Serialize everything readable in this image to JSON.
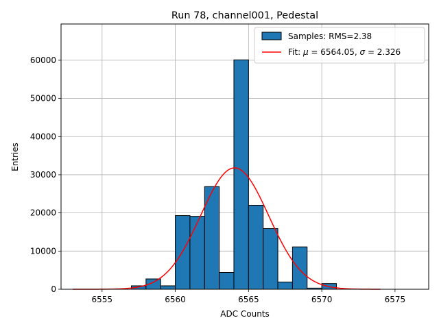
{
  "chart_data": {
    "type": "bar",
    "title": "Run 78, channel001, Pedestal",
    "xlabel": "ADC Counts",
    "ylabel": "Entries",
    "xlim": [
      6552.2,
      6577.3
    ],
    "ylim": [
      0,
      69500
    ],
    "grid": true,
    "xticks": [
      6555,
      6560,
      6565,
      6570,
      6575
    ],
    "yticks": [
      0,
      10000,
      20000,
      30000,
      40000,
      50000,
      60000
    ],
    "bin_width": 1,
    "bin_centers": [
      6557.5,
      6558.5,
      6559.5,
      6560.5,
      6561.5,
      6562.5,
      6563.5,
      6564.5,
      6565.5,
      6566.5,
      6567.5,
      6568.5,
      6569.5,
      6570.5
    ],
    "values": [
      900,
      2700,
      900,
      19300,
      19100,
      26900,
      4400,
      60100,
      22000,
      15900,
      1900,
      11100,
      300,
      1500
    ],
    "bar_color": "#1f77b4",
    "bar_edge_color": "#000000",
    "fit": {
      "mu": 6564.05,
      "sigma": 2.326,
      "amplitude": 31800,
      "x_range": [
        6553,
        6574
      ],
      "color": "#ff0000"
    },
    "legend": {
      "position": "top-right",
      "entries": [
        {
          "label": "Samples: RMS=2.38"
        },
        {
          "label_prefix": "Fit: ",
          "mu_symbol": "μ",
          "mu_text": " = 6564.05, ",
          "sigma_symbol": "σ",
          "sigma_text": " = 2.326"
        }
      ]
    }
  }
}
